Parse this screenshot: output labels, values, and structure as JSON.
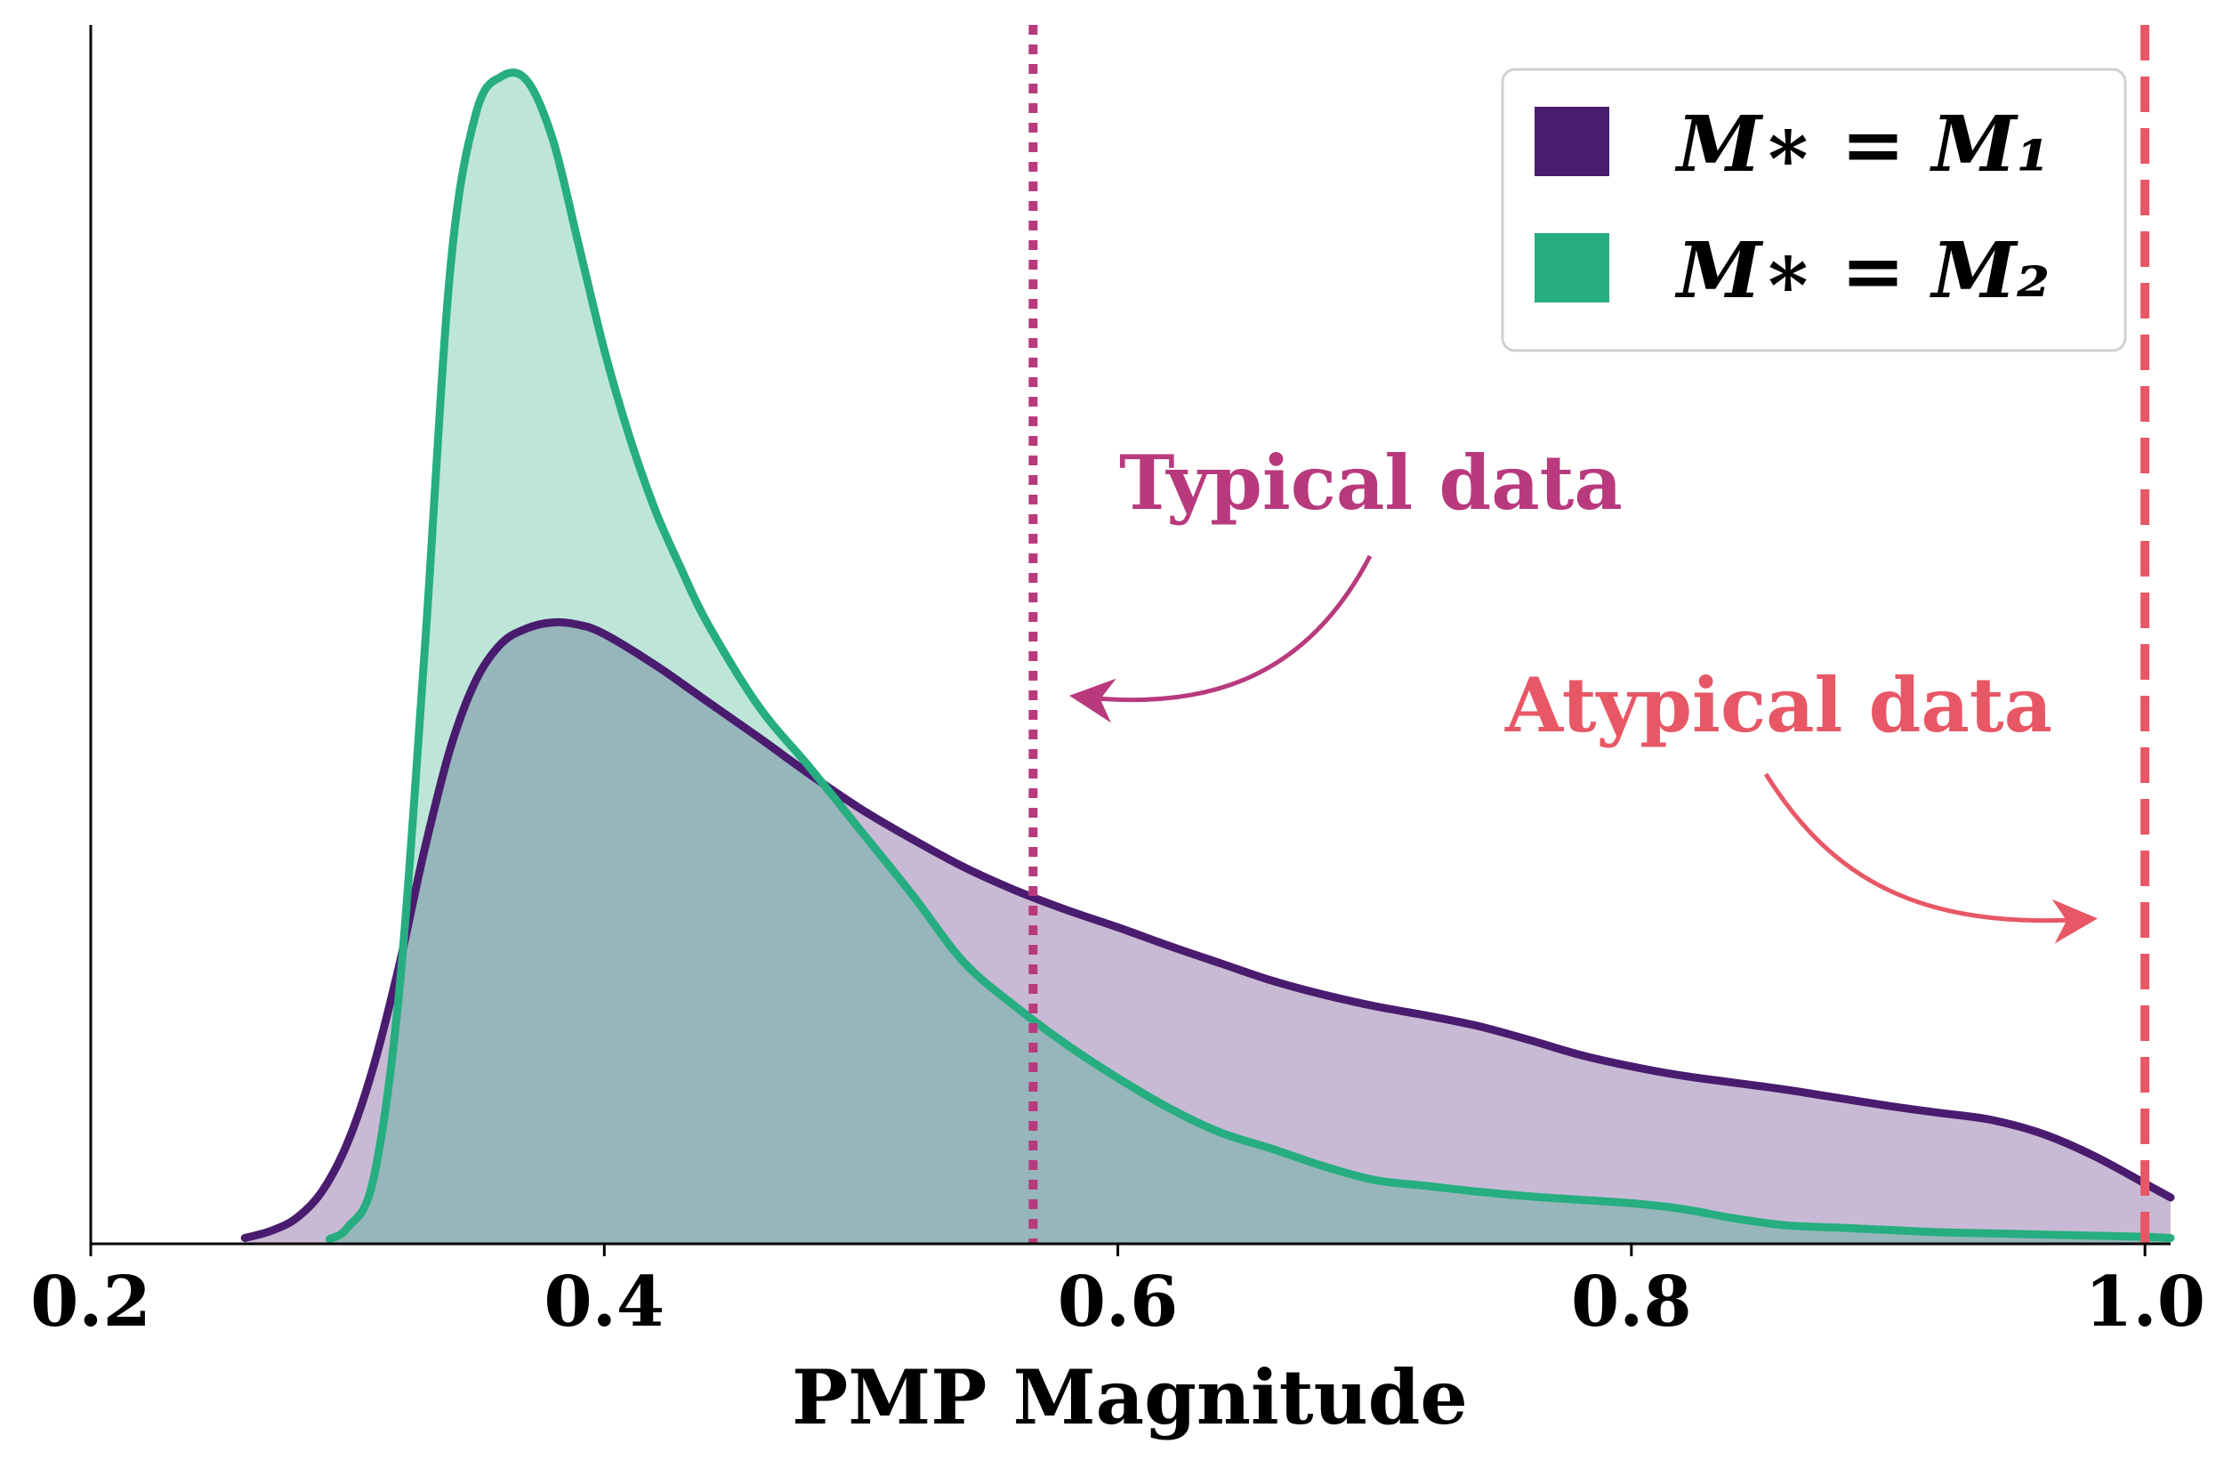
{
  "chart_data": {
    "type": "area",
    "xlabel": "PMP Magnitude",
    "ylabel": "",
    "xlim": [
      0.2,
      1.01
    ],
    "ylim": [
      0,
      1.0
    ],
    "xticks": [
      "0.2",
      "0.4",
      "0.6",
      "0.8",
      "1.0"
    ],
    "xtick_values": [
      0.2,
      0.4,
      0.6,
      0.8,
      1.0
    ],
    "yticks_shown": false,
    "grid": false,
    "legend_position": "top-right",
    "series": [
      {
        "name": "M* = M1",
        "legend_label": "M∗ = M₁",
        "line_color": "#4a1c6f",
        "fill_color": "#c7b9d4",
        "x": [
          0.26,
          0.27,
          0.28,
          0.29,
          0.3,
          0.31,
          0.32,
          0.33,
          0.34,
          0.35,
          0.36,
          0.37,
          0.38,
          0.39,
          0.4,
          0.42,
          0.44,
          0.46,
          0.48,
          0.5,
          0.52,
          0.54,
          0.56,
          0.58,
          0.6,
          0.62,
          0.64,
          0.66,
          0.68,
          0.7,
          0.72,
          0.74,
          0.76,
          0.78,
          0.8,
          0.82,
          0.84,
          0.86,
          0.88,
          0.9,
          0.92,
          0.94,
          0.96,
          0.98,
          1.0,
          1.01
        ],
        "y": [
          0.005,
          0.011,
          0.022,
          0.045,
          0.087,
          0.152,
          0.239,
          0.34,
          0.427,
          0.486,
          0.518,
          0.531,
          0.536,
          0.534,
          0.526,
          0.499,
          0.468,
          0.437,
          0.405,
          0.375,
          0.349,
          0.325,
          0.305,
          0.288,
          0.273,
          0.257,
          0.242,
          0.227,
          0.215,
          0.205,
          0.197,
          0.188,
          0.176,
          0.163,
          0.153,
          0.145,
          0.139,
          0.133,
          0.126,
          0.119,
          0.113,
          0.107,
          0.095,
          0.076,
          0.052,
          0.04
        ]
      },
      {
        "name": "M* = M2",
        "legend_label": "M∗ = M₂",
        "line_color": "#26ad80",
        "fill_color": "#bde6d8",
        "x": [
          0.293,
          0.3,
          0.31,
          0.32,
          0.33,
          0.34,
          0.35,
          0.36,
          0.37,
          0.38,
          0.39,
          0.4,
          0.41,
          0.42,
          0.43,
          0.44,
          0.46,
          0.48,
          0.5,
          0.52,
          0.54,
          0.56,
          0.58,
          0.6,
          0.62,
          0.64,
          0.66,
          0.68,
          0.7,
          0.72,
          0.74,
          0.76,
          0.78,
          0.8,
          0.82,
          0.84,
          0.86,
          0.88,
          0.9,
          0.92,
          0.94,
          0.96,
          0.98,
          1.0,
          1.01
        ],
        "y": [
          0.004,
          0.014,
          0.055,
          0.215,
          0.51,
          0.84,
          0.975,
          1.007,
          1.003,
          0.952,
          0.862,
          0.771,
          0.695,
          0.632,
          0.582,
          0.536,
          0.464,
          0.411,
          0.356,
          0.301,
          0.243,
          0.205,
          0.172,
          0.143,
          0.117,
          0.096,
          0.082,
          0.067,
          0.055,
          0.05,
          0.045,
          0.041,
          0.038,
          0.035,
          0.03,
          0.022,
          0.016,
          0.014,
          0.012,
          0.01,
          0.009,
          0.008,
          0.007,
          0.006,
          0.005
        ]
      }
    ],
    "vlines": [
      {
        "x": 0.567,
        "style": "dotted",
        "color": "#b83a7d"
      },
      {
        "x": 1.0,
        "style": "dashed",
        "color": "#e85766"
      }
    ],
    "annotations": [
      {
        "text": "Typical data",
        "color": "#b83a7d",
        "points_to_x": 0.567
      },
      {
        "text": "Atypical data",
        "color": "#e85766",
        "points_to_x": 1.0
      }
    ]
  }
}
